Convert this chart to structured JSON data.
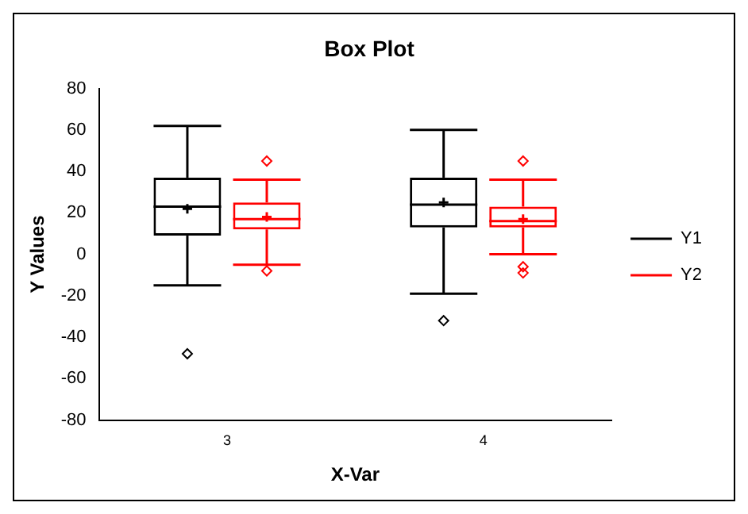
{
  "chart_data": {
    "type": "box",
    "title": "Box Plot",
    "xlabel": "X-Var",
    "ylabel": "Y Values",
    "categories": [
      "3",
      "4"
    ],
    "series": [
      {
        "name": "Y1",
        "color": "#000000",
        "boxes": [
          {
            "low": -15,
            "q1": 9,
            "median": 23,
            "q3": 37,
            "high": 62,
            "mean": 22,
            "outliers": [
              -48
            ]
          },
          {
            "low": -19,
            "q1": 13,
            "median": 24,
            "q3": 37,
            "high": 60,
            "mean": 25,
            "outliers": [
              -32
            ]
          }
        ]
      },
      {
        "name": "Y2",
        "color": "#ff0000",
        "boxes": [
          {
            "low": -5,
            "q1": 12,
            "median": 17,
            "q3": 25,
            "high": 36,
            "mean": 18,
            "outliers": [
              45,
              -8
            ]
          },
          {
            "low": 0,
            "q1": 13,
            "median": 16,
            "q3": 23,
            "high": 36,
            "mean": 17,
            "outliers": [
              45,
              -6,
              -9
            ]
          }
        ]
      }
    ],
    "ylim": [
      -80,
      80
    ],
    "yticks": [
      -80,
      -60,
      -40,
      -20,
      0,
      20,
      40,
      60,
      80
    ],
    "legend": "right",
    "grid": false
  }
}
